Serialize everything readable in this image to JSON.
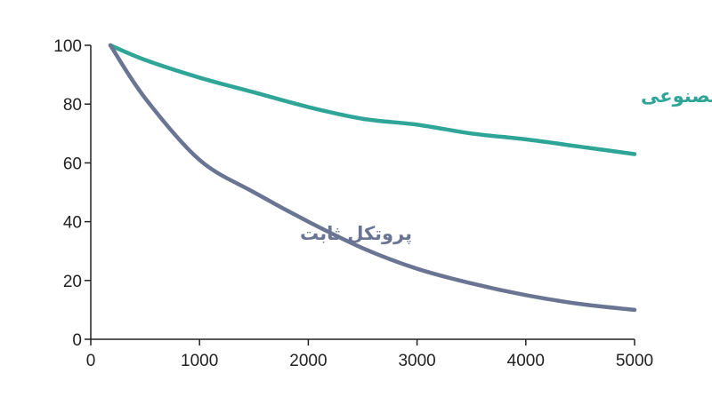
{
  "chart_data": {
    "type": "line",
    "title": "",
    "xlabel": "",
    "ylabel": "",
    "xlim": [
      0,
      5000
    ],
    "ylim": [
      0,
      100
    ],
    "x_ticks": [
      0,
      1000,
      2000,
      3000,
      4000,
      5000
    ],
    "y_ticks": [
      0,
      20,
      40,
      60,
      80,
      100
    ],
    "grid": false,
    "legend": "none (series labelled directly on plot)",
    "series": [
      {
        "name": "تطبیقی مبتنی بر هوش مصنوعی",
        "color": "#2ea597",
        "x": [
          180,
          500,
          1000,
          1500,
          2000,
          2500,
          3000,
          3500,
          4000,
          4500,
          5000
        ],
        "y": [
          100,
          95,
          89,
          84,
          79,
          75,
          73,
          70,
          68,
          65.5,
          63
        ]
      },
      {
        "name": "پروتکل ثابت",
        "color": "#6a7594",
        "x": [
          180,
          500,
          1000,
          1500,
          2000,
          2500,
          3000,
          3500,
          4000,
          4500,
          5000
        ],
        "y": [
          100,
          82,
          61,
          50,
          40,
          31,
          24,
          19,
          15,
          12,
          10
        ]
      }
    ]
  }
}
